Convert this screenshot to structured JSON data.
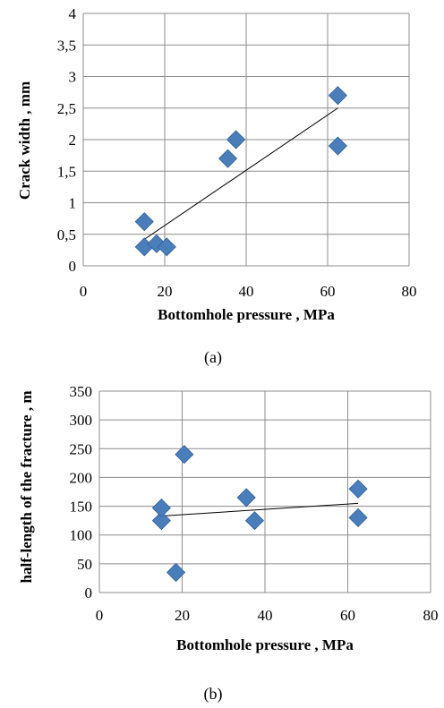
{
  "colors": {
    "marker": "#4a7ebb",
    "grid": "#8c8c8c",
    "trendline": "#000000"
  },
  "captions": {
    "a": "(a)",
    "b": "(b)"
  },
  "chart_data": [
    {
      "type": "scatter",
      "xlabel": "Bottomhole pressure , MPa",
      "ylabel": "Crack width , mm",
      "xlim": [
        0,
        80
      ],
      "ylim": [
        0,
        4
      ],
      "x_ticks": [
        "0",
        "20",
        "40",
        "60",
        "80"
      ],
      "y_ticks": [
        "0",
        "0,5",
        "1",
        "1,5",
        "2",
        "2,5",
        "3",
        "3,5",
        "4"
      ],
      "grid": true,
      "x": [
        15,
        15,
        18,
        20.5,
        35.5,
        37.5,
        62.5,
        62.5
      ],
      "y": [
        0.3,
        0.7,
        0.35,
        0.3,
        1.7,
        2.0,
        2.7,
        1.9
      ],
      "trendline": {
        "x": [
          15,
          62.5
        ],
        "y": [
          0.42,
          2.5
        ]
      }
    },
    {
      "type": "scatter",
      "xlabel": "Bottomhole pressure , MPa",
      "ylabel": "half-length of the fracture , m",
      "xlim": [
        0,
        80
      ],
      "ylim": [
        0,
        350
      ],
      "x_ticks": [
        "0",
        "20",
        "40",
        "60",
        "80"
      ],
      "y_ticks": [
        "0",
        "50",
        "100",
        "150",
        "200",
        "250",
        "300",
        "350"
      ],
      "grid": true,
      "x": [
        15,
        15,
        18.5,
        20.5,
        35.5,
        37.5,
        62.5,
        62.5
      ],
      "y": [
        125,
        147,
        35,
        240,
        165,
        125,
        180,
        130
      ],
      "trendline": {
        "x": [
          15,
          62.5
        ],
        "y": [
          133,
          155
        ]
      }
    }
  ]
}
